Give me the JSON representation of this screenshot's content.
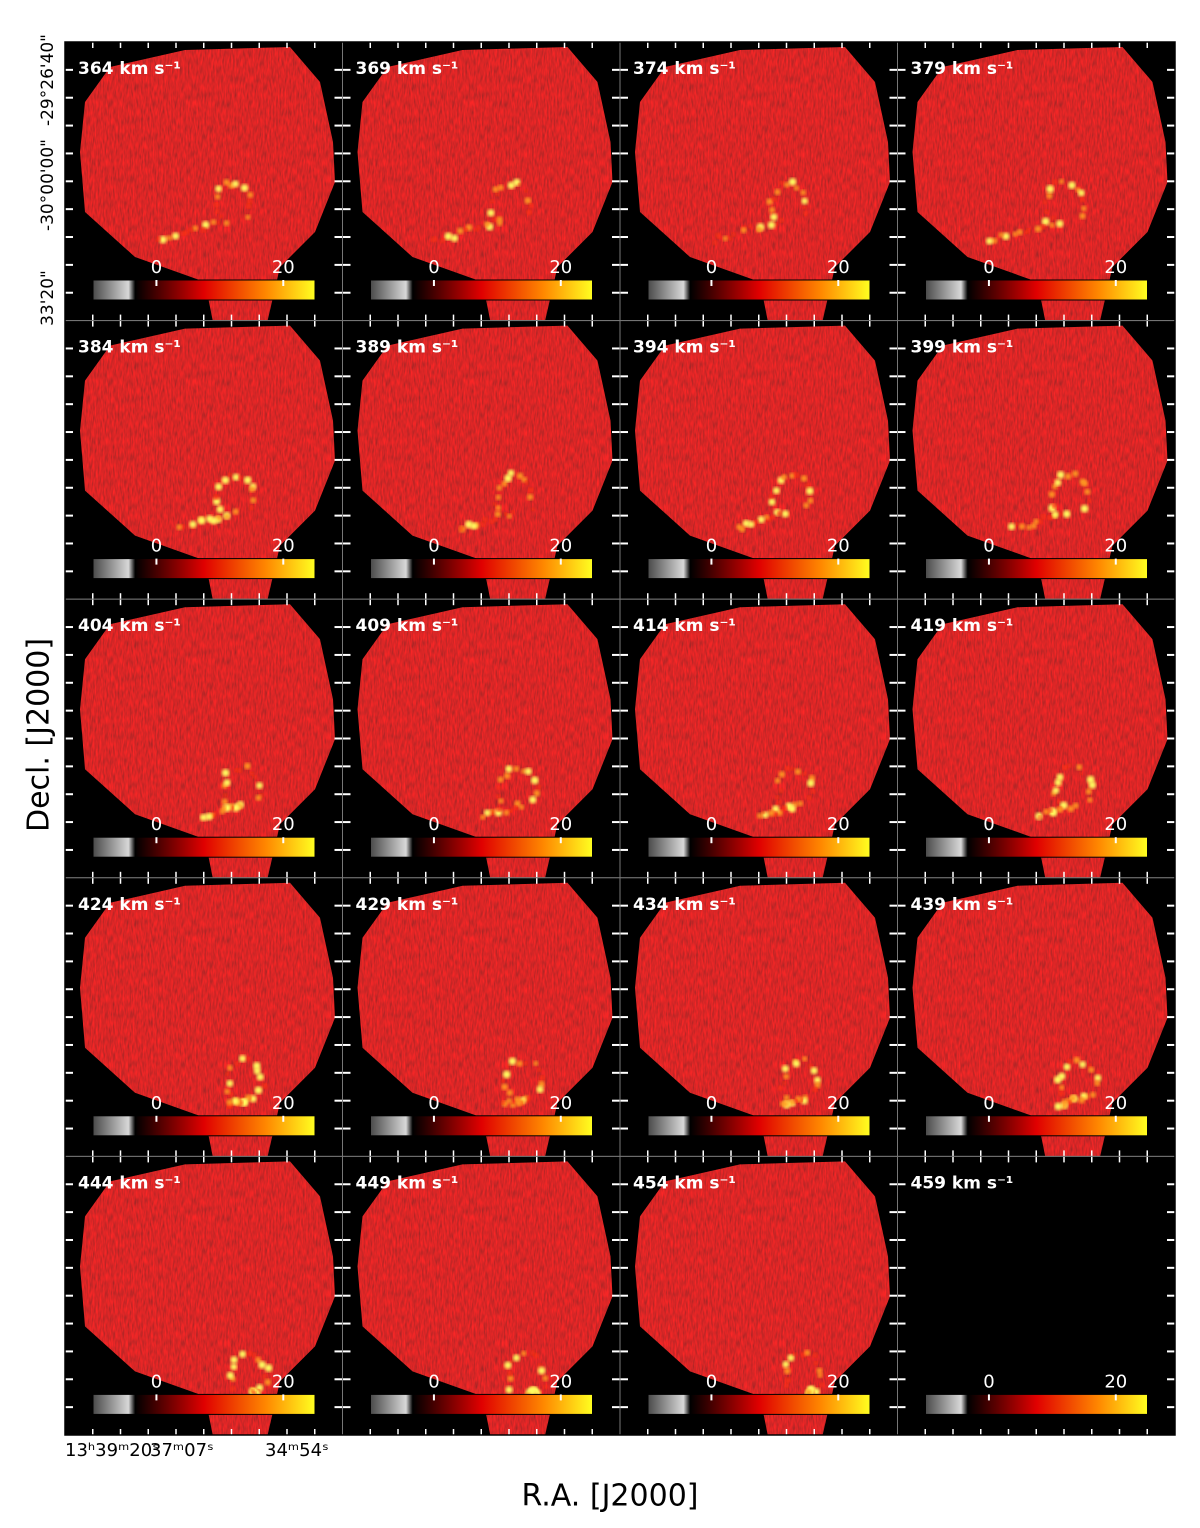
{
  "chart_data": {
    "type": "channel-map",
    "ylabel": "Decl. [J2000]",
    "xlabel": "R.A. [J2000]",
    "ytick_labels": [
      "-29°26'40\"",
      "-30°00'00\"",
      "33'20\""
    ],
    "xtick_labels": [
      "13ʰ39ᵐ20ˢ",
      "37ᵐ07ˢ",
      "34ᵐ54ˢ"
    ],
    "panels": [
      "364 km s⁻¹",
      "369 km s⁻¹",
      "374 km s⁻¹",
      "379 km s⁻¹",
      "384 km s⁻¹",
      "389 km s⁻¹",
      "394 km s⁻¹",
      "399 km s⁻¹",
      "404 km s⁻¹",
      "409 km s⁻¹",
      "414 km s⁻¹",
      "419 km s⁻¹",
      "424 km s⁻¹",
      "429 km s⁻¹",
      "434 km s⁻¹",
      "439 km s⁻¹",
      "444 km s⁻¹",
      "449 km s⁻¹",
      "454 km s⁻¹",
      "459 km s⁻¹"
    ],
    "colorbar": {
      "lim": [
        -10,
        25
      ],
      "ticks": [
        0,
        20
      ]
    }
  }
}
